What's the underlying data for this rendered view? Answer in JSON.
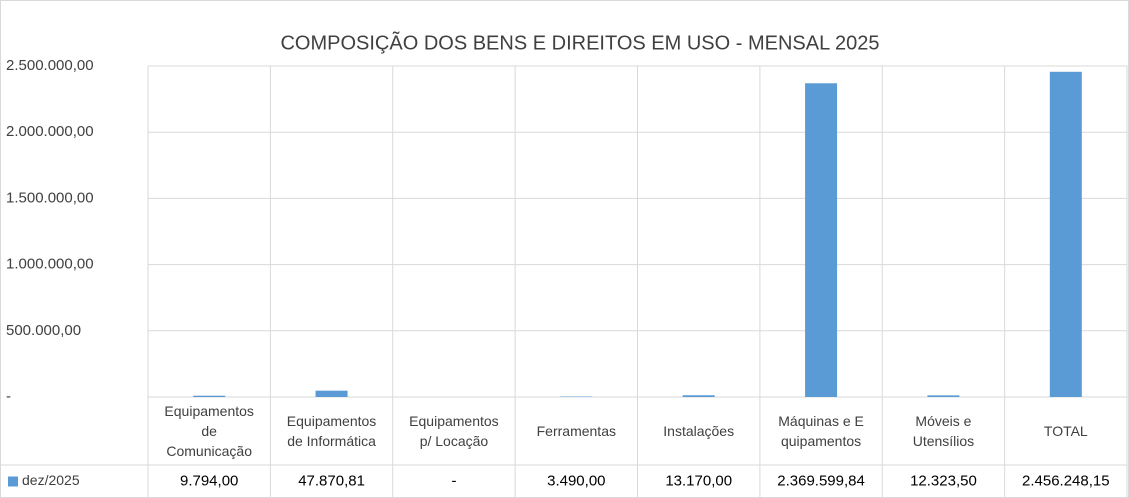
{
  "chart_data": {
    "type": "bar",
    "title": "COMPOSIÇÃO DOS BENS E DIREITOS EM USO - MENSAL 2025",
    "categories": [
      "Equipamentos de Comunicação",
      "Equipamentos de Informática",
      "Equipamentos p/ Locação",
      "Ferramentas",
      "Instalações",
      "Máquinas e E quipamentos",
      "Móveis e Utensílios",
      "TOTAL"
    ],
    "series": [
      {
        "name": "dez/2025",
        "color": "#5b9bd5",
        "values": [
          9794,
          47870.81,
          0,
          3490,
          13170,
          2369599.84,
          12323.5,
          2456248.15
        ],
        "value_labels": [
          "9.794,00",
          "47.870,81",
          "-",
          "3.490,00",
          "13.170,00",
          "2.369.599,84",
          "12.323,50",
          "2.456.248,15"
        ]
      }
    ],
    "ylim": [
      0,
      2500000
    ],
    "yticks": [
      {
        "value": 0,
        "label": "-"
      },
      {
        "value": 500000,
        "label": "500.000,00"
      },
      {
        "value": 1000000,
        "label": "1.000.000,00"
      },
      {
        "value": 1500000,
        "label": "1.500.000,00"
      },
      {
        "value": 2000000,
        "label": "2.000.000,00"
      },
      {
        "value": 2500000,
        "label": "2.500.000,00"
      }
    ],
    "grid": true
  }
}
